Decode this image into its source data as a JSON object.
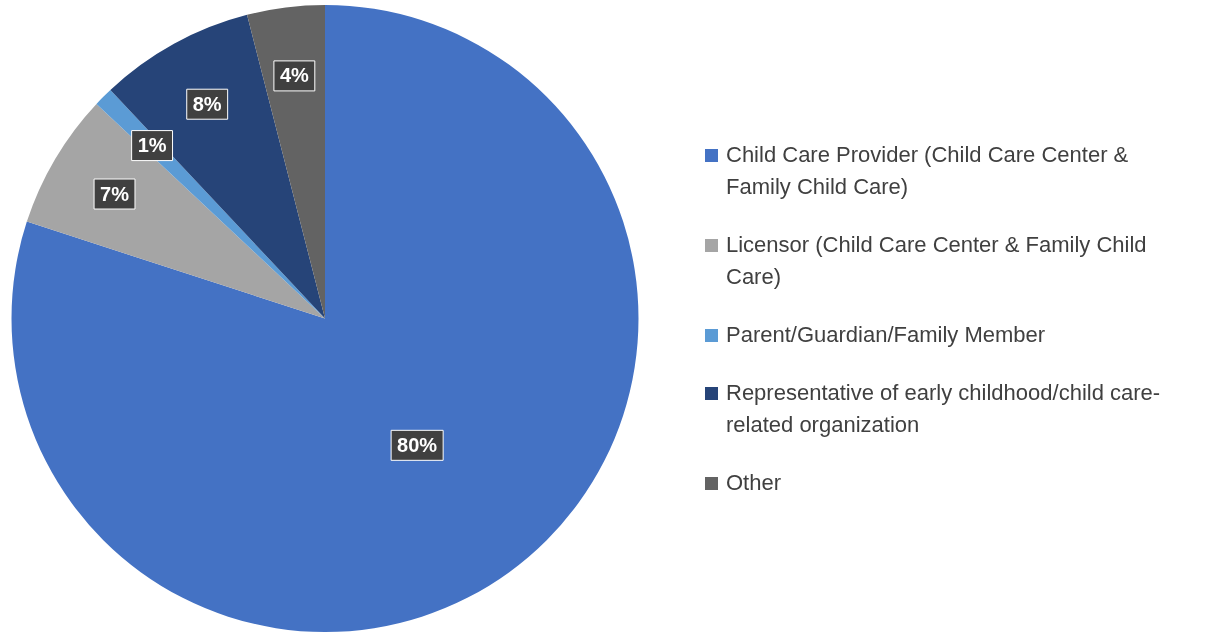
{
  "chart_data": {
    "type": "pie",
    "categories": [
      "Child Care Provider (Child Care Center & Family Child Care)",
      "Licensor (Child Care Center & Family Child Care)",
      "Parent/Guardian/Family Member",
      "Representative of early childhood/child care-related organization",
      "Other"
    ],
    "values": [
      80,
      7,
      1,
      8,
      4
    ],
    "colors": [
      "#4472c4",
      "#a5a5a5",
      "#5b9bd5",
      "#264478",
      "#636363"
    ],
    "value_labels": [
      "80%",
      "7%",
      "1%",
      "8%",
      "4%"
    ],
    "legend": "right"
  }
}
